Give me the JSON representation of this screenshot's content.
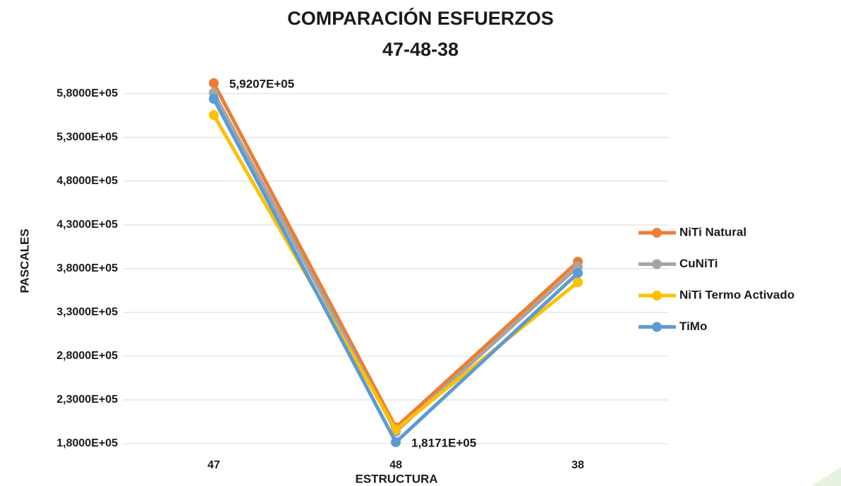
{
  "chart_data": {
    "type": "line",
    "title": "COMPARACIÓN  ESFUERZOS",
    "subtitle": "47-48-38",
    "x_label": "ESTRUCTURA",
    "y_label": "PASCALES",
    "categories": [
      "47",
      "48",
      "38"
    ],
    "series": [
      {
        "name": "NiTi Natural",
        "color": "#ED7D31",
        "values": [
          592070,
          198500,
          388000
        ],
        "value_labels": [
          "5,9207E+05",
          null,
          null
        ]
      },
      {
        "name": "CuNiTi",
        "color": "#A5A5A5",
        "values": [
          581000,
          193700,
          382300
        ]
      },
      {
        "name": "NiTi Termo Activado",
        "color": "#FFC000",
        "values": [
          555600,
          196000,
          364600
        ]
      },
      {
        "name": "TiMo",
        "color": "#5B9BD5",
        "values": [
          574100,
          181710,
          375000
        ],
        "value_labels": [
          null,
          "1,8171E+05",
          null
        ]
      }
    ],
    "ylim": [
      180000,
      600000
    ],
    "yticks": [
      {
        "value": 180000,
        "label": "1,8000E+05"
      },
      {
        "value": 230000,
        "label": "2,3000E+05"
      },
      {
        "value": 280000,
        "label": "2,8000E+05"
      },
      {
        "value": 330000,
        "label": "3,3000E+05"
      },
      {
        "value": 380000,
        "label": "3,8000E+05"
      },
      {
        "value": 430000,
        "label": "4,3000E+05"
      },
      {
        "value": 480000,
        "label": "4,8000E+05"
      },
      {
        "value": 530000,
        "label": "5,3000E+05"
      },
      {
        "value": 580000,
        "label": "5,8000E+05"
      }
    ],
    "grid": true,
    "legend": "right"
  }
}
